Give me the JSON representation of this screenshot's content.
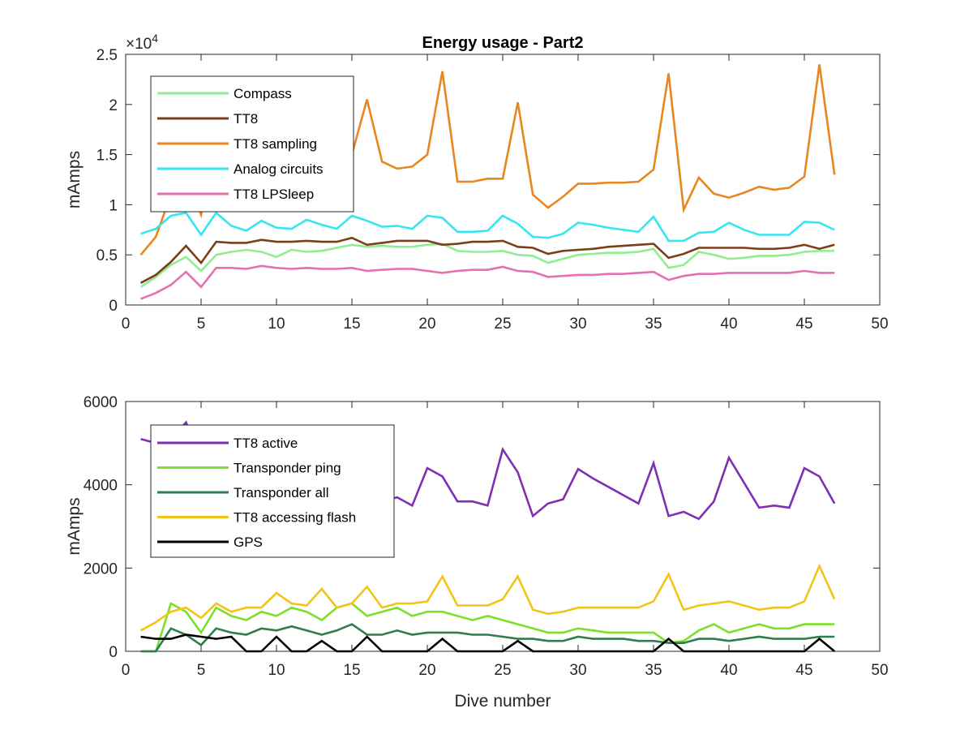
{
  "chart_data": [
    {
      "type": "line",
      "title": "Energy usage - Part2",
      "xlabel": "",
      "ylabel": "mAmps",
      "xlim": [
        0,
        50
      ],
      "ylim": [
        0,
        25000
      ],
      "x_ticks": [
        "0",
        "5",
        "10",
        "15",
        "20",
        "25",
        "30",
        "35",
        "40",
        "45",
        "50"
      ],
      "y_ticks": [
        "0",
        "0.5",
        "1",
        "1.5",
        "2",
        "2.5"
      ],
      "y_exponent_label": "×10",
      "y_exponent_power": "4",
      "legend_position": "top-left",
      "grid": false,
      "x": [
        1,
        2,
        3,
        4,
        5,
        6,
        7,
        8,
        9,
        10,
        11,
        12,
        13,
        14,
        15,
        16,
        17,
        18,
        19,
        20,
        21,
        22,
        23,
        24,
        25,
        26,
        27,
        28,
        29,
        30,
        31,
        32,
        33,
        34,
        35,
        36,
        37,
        38,
        39,
        40,
        41,
        42,
        43,
        44,
        45,
        46,
        47
      ],
      "series": [
        {
          "name": "Compass",
          "color": "#90ee90",
          "values": [
            1800,
            2800,
            4000,
            4800,
            3400,
            5000,
            5300,
            5500,
            5300,
            4800,
            5500,
            5300,
            5400,
            5700,
            6000,
            5800,
            5900,
            5800,
            5800,
            6000,
            6100,
            5400,
            5300,
            5300,
            5400,
            5000,
            4900,
            4200,
            4600,
            5000,
            5100,
            5200,
            5200,
            5300,
            5600,
            3700,
            4000,
            5300,
            5000,
            4600,
            4700,
            4900,
            4900,
            5000,
            5300,
            5400,
            5400
          ]
        },
        {
          "name": "TT8",
          "color": "#7b3f1a",
          "values": [
            2200,
            3000,
            4300,
            5900,
            4200,
            6300,
            6200,
            6200,
            6500,
            6300,
            6300,
            6400,
            6300,
            6300,
            6700,
            6000,
            6200,
            6400,
            6400,
            6400,
            6000,
            6100,
            6300,
            6300,
            6400,
            5800,
            5700,
            5100,
            5400,
            5500,
            5600,
            5800,
            5900,
            6000,
            6100,
            4700,
            5100,
            5700,
            5700,
            5700,
            5700,
            5600,
            5600,
            5700,
            6000,
            5600,
            6000
          ]
        },
        {
          "name": "TT8 sampling",
          "color": "#e8871e",
          "values": [
            5000,
            6800,
            11000,
            13000,
            9000,
            16500,
            17000,
            16000,
            15500,
            15800,
            16000,
            16200,
            16000,
            16500,
            15000,
            20500,
            14300,
            13600,
            13800,
            15000,
            23300,
            12300,
            12300,
            12600,
            12600,
            20200,
            11000,
            9700,
            10800,
            12100,
            12100,
            12200,
            12200,
            12300,
            13500,
            23100,
            9500,
            12700,
            11100,
            10700,
            11200,
            11800,
            11500,
            11700,
            12800,
            24000,
            13000
          ]
        },
        {
          "name": "Analog circuits",
          "color": "#33e6f2",
          "values": [
            7100,
            7600,
            8900,
            9200,
            7000,
            9200,
            7900,
            7400,
            8400,
            7700,
            7600,
            8500,
            8000,
            7600,
            8900,
            8400,
            7800,
            7900,
            7600,
            8900,
            8700,
            7300,
            7300,
            7400,
            8900,
            8100,
            6800,
            6700,
            7100,
            8200,
            8000,
            7700,
            7500,
            7300,
            8800,
            6400,
            6400,
            7200,
            7300,
            8200,
            7500,
            7000,
            7000,
            7000,
            8300,
            8200,
            7500
          ]
        },
        {
          "name": "TT8 LPSleep",
          "color": "#e66fb0",
          "values": [
            600,
            1200,
            2000,
            3300,
            1800,
            3700,
            3700,
            3600,
            3900,
            3700,
            3600,
            3700,
            3600,
            3600,
            3700,
            3400,
            3500,
            3600,
            3600,
            3400,
            3200,
            3400,
            3500,
            3500,
            3800,
            3400,
            3300,
            2800,
            2900,
            3000,
            3000,
            3100,
            3100,
            3200,
            3300,
            2500,
            2900,
            3100,
            3100,
            3200,
            3200,
            3200,
            3200,
            3200,
            3400,
            3200,
            3200
          ]
        }
      ]
    },
    {
      "type": "line",
      "title": "",
      "xlabel": "Dive number",
      "ylabel": "mAmps",
      "xlim": [
        0,
        50
      ],
      "ylim": [
        0,
        6000
      ],
      "x_ticks": [
        "0",
        "5",
        "10",
        "15",
        "20",
        "25",
        "30",
        "35",
        "40",
        "45",
        "50"
      ],
      "y_ticks": [
        "0",
        "2000",
        "4000",
        "6000"
      ],
      "legend_position": "top-left",
      "grid": false,
      "x": [
        1,
        2,
        3,
        4,
        5,
        6,
        7,
        8,
        9,
        10,
        11,
        12,
        13,
        14,
        15,
        16,
        17,
        18,
        19,
        20,
        21,
        22,
        23,
        24,
        25,
        26,
        27,
        28,
        29,
        30,
        31,
        32,
        33,
        34,
        35,
        36,
        37,
        38,
        39,
        40,
        41,
        42,
        43,
        44,
        45,
        46,
        47
      ],
      "series": [
        {
          "name": "TT8 active",
          "color": "#7e2fb4",
          "values": [
            5100,
            5000,
            5100,
            5500,
            4700,
            4800,
            4400,
            4200,
            4300,
            4200,
            4000,
            3900,
            3800,
            3700,
            3800,
            3700,
            3600,
            3700,
            3500,
            4400,
            4200,
            3600,
            3600,
            3500,
            4850,
            4300,
            3250,
            3550,
            3650,
            4380,
            4150,
            3950,
            3750,
            3550,
            4520,
            3250,
            3350,
            3180,
            3600,
            4650,
            4050,
            3450,
            3500,
            3450,
            4400,
            4200,
            3550
          ]
        },
        {
          "name": "Transponder ping",
          "color": "#7ce02a",
          "values": [
            0,
            0,
            1150,
            950,
            450,
            1050,
            850,
            750,
            950,
            850,
            1050,
            950,
            750,
            1050,
            1150,
            850,
            950,
            1050,
            850,
            950,
            950,
            850,
            750,
            850,
            750,
            650,
            550,
            450,
            450,
            550,
            500,
            450,
            450,
            450,
            450,
            200,
            250,
            500,
            650,
            450,
            550,
            650,
            550,
            550,
            650,
            650,
            650
          ]
        },
        {
          "name": "Transponder all",
          "color": "#2e7d4f",
          "values": [
            0,
            0,
            550,
            400,
            150,
            550,
            450,
            400,
            550,
            500,
            600,
            500,
            400,
            500,
            650,
            400,
            400,
            500,
            400,
            450,
            450,
            450,
            400,
            400,
            350,
            300,
            300,
            250,
            250,
            350,
            300,
            300,
            300,
            250,
            250,
            200,
            200,
            300,
            300,
            250,
            300,
            350,
            300,
            300,
            300,
            350,
            350
          ]
        },
        {
          "name": "TT8 accessing flash",
          "color": "#f2c418",
          "values": [
            500,
            700,
            950,
            1050,
            800,
            1150,
            950,
            1050,
            1050,
            1400,
            1150,
            1100,
            1500,
            1050,
            1150,
            1550,
            1050,
            1150,
            1150,
            1200,
            1800,
            1100,
            1100,
            1100,
            1250,
            1800,
            1000,
            900,
            950,
            1050,
            1050,
            1050,
            1050,
            1050,
            1200,
            1850,
            1000,
            1100,
            1150,
            1200,
            1100,
            1000,
            1050,
            1050,
            1200,
            2050,
            1250
          ]
        },
        {
          "name": "GPS",
          "color": "#000000",
          "values": [
            350,
            300,
            300,
            400,
            350,
            300,
            350,
            0,
            0,
            350,
            0,
            0,
            250,
            0,
            0,
            350,
            0,
            0,
            0,
            0,
            300,
            0,
            0,
            0,
            0,
            250,
            0,
            0,
            0,
            0,
            0,
            0,
            0,
            0,
            0,
            300,
            0,
            0,
            0,
            0,
            0,
            0,
            0,
            0,
            0,
            300,
            0
          ]
        }
      ]
    }
  ]
}
